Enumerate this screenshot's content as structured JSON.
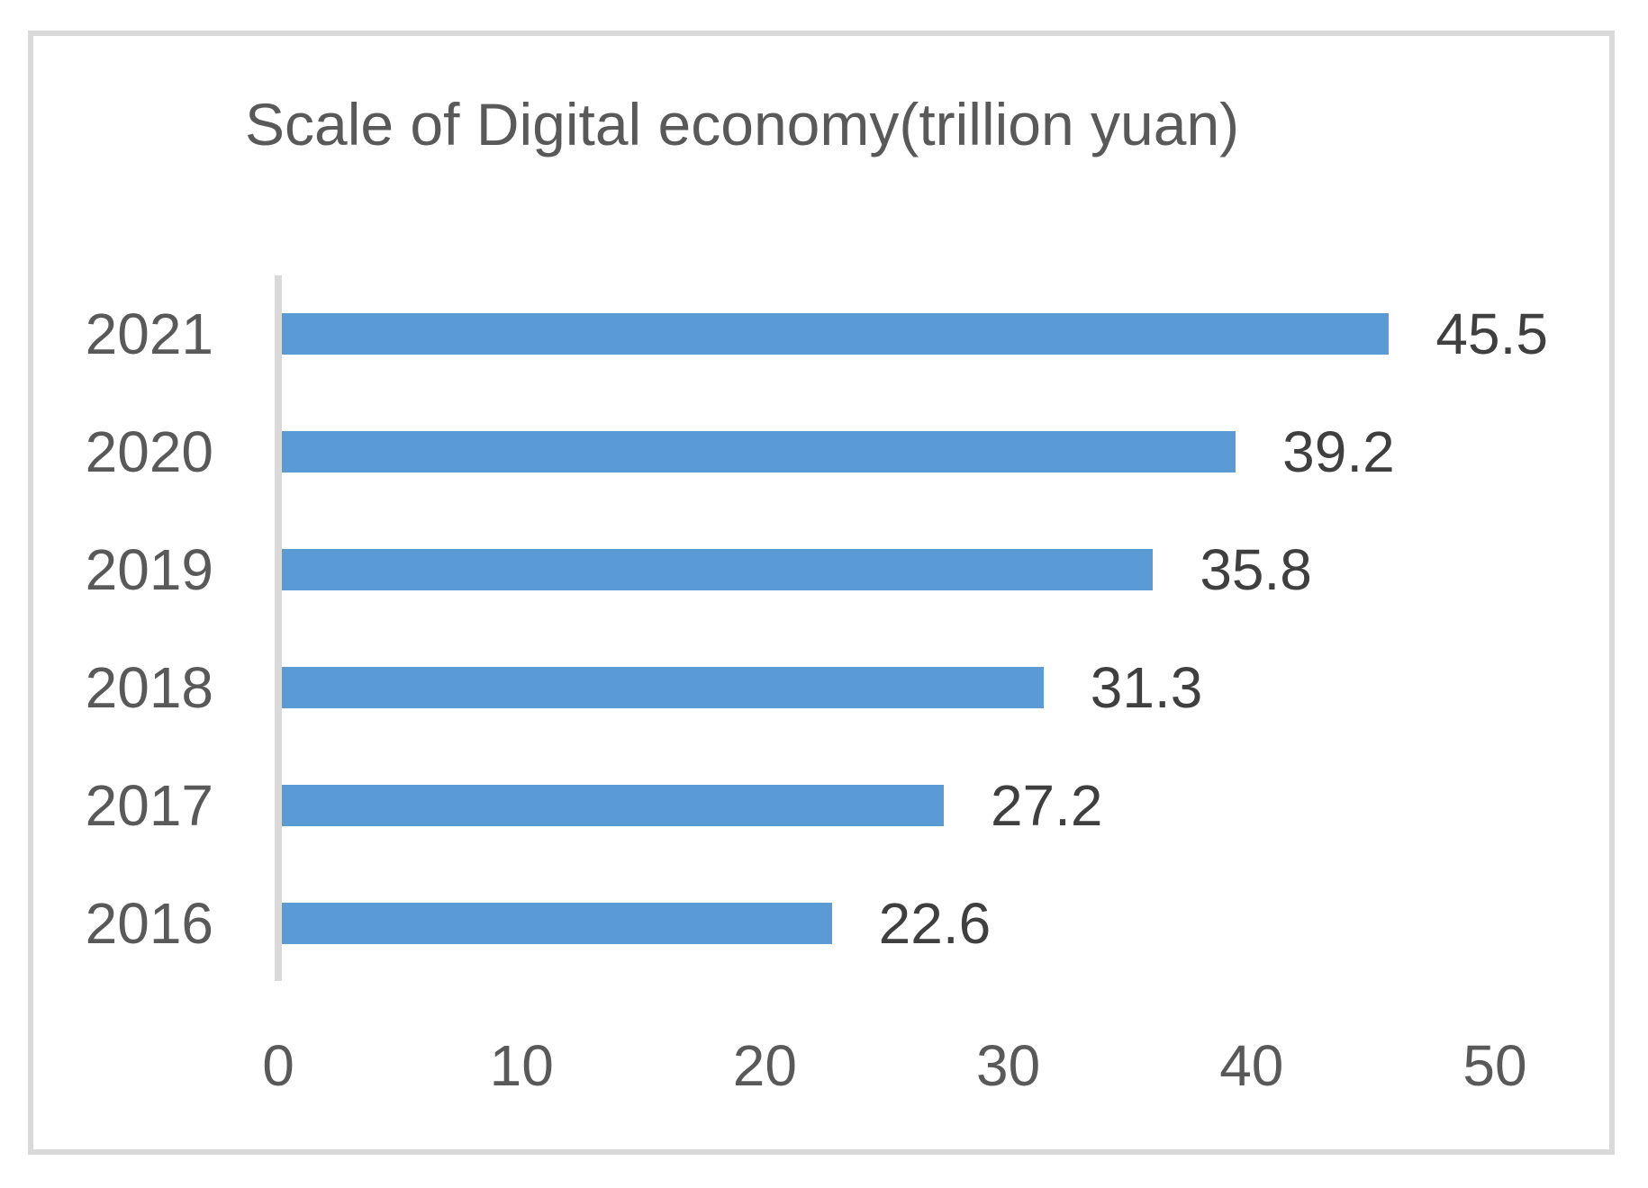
{
  "chart_data": {
    "type": "bar",
    "orientation": "horizontal",
    "title": "Scale of Digital economy(trillion yuan)",
    "categories": [
      "2021",
      "2020",
      "2019",
      "2018",
      "2017",
      "2016"
    ],
    "values": [
      45.5,
      39.2,
      35.8,
      31.3,
      27.2,
      22.6
    ],
    "value_labels": [
      "45.5",
      "39.2",
      "35.8",
      "31.3",
      "27.2",
      "22.6"
    ],
    "series": [
      {
        "name": "Scale of Digital economy",
        "values": [
          45.5,
          39.2,
          35.8,
          31.3,
          27.2,
          22.6
        ]
      }
    ],
    "x_ticks": [
      "0",
      "10",
      "20",
      "30",
      "40",
      "50"
    ],
    "x_tick_values": [
      0,
      10,
      20,
      30,
      40,
      50
    ],
    "xlim": [
      0,
      50
    ],
    "xlabel": "",
    "ylabel": "",
    "grid": false,
    "legend": false,
    "colors": {
      "bar": "#5B9BD5",
      "title_text": "#595959",
      "axis_tick_text": "#595959",
      "category_text": "#595959",
      "value_label_text": "#3F3F3F",
      "axis_line": "#D9D9D9",
      "frame_border": "#D9D9D9",
      "background": "#FFFFFF"
    }
  }
}
